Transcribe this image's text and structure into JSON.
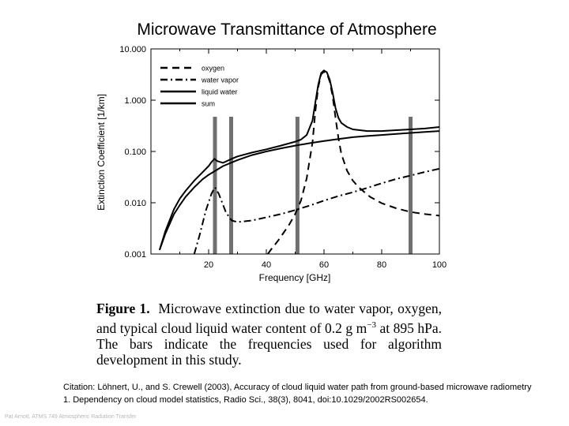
{
  "slide": {
    "title": "Microwave Transmittance of Atmosphere",
    "footer": "Pat Arnott, ATMS 749 Atmospheric Radiation Transfer"
  },
  "figure": {
    "label": "Figure 1.",
    "caption_pre": "Microwave extinction due to water vapor, oxygen, and typical cloud liquid water content of 0.2 g m",
    "caption_exp": "−3",
    "caption_post": " at 895 hPa. The bars indicate the frequencies used for algorithm development in this study."
  },
  "citation": {
    "label": "Citation",
    "text": ": Löhnert, U., and S. Crewell (2003), Accuracy of cloud liquid water path from ground-based microwave radiometry 1. Dependency on cloud model statistics, Radio Sci., 38(3), 8041, doi:10.1029/2002RS002654."
  },
  "chart_data": {
    "type": "line",
    "xlabel": "Frequency [GHz]",
    "ylabel": "Extinction Coefficient [1/km]",
    "xlim": [
      0,
      100
    ],
    "ylim": [
      0.001,
      10
    ],
    "yscale": "log",
    "xticks": [
      20,
      40,
      60,
      80,
      100
    ],
    "yticks": [
      {
        "value": 0.001,
        "label": "0.001"
      },
      {
        "value": 0.01,
        "label": "0.010"
      },
      {
        "value": 0.1,
        "label": "0.100"
      },
      {
        "value": 1,
        "label": "1.000"
      },
      {
        "value": 10,
        "label": "10.000"
      }
    ],
    "legend_position": "top-left",
    "series": [
      {
        "name": "oxygen",
        "style": "dashed",
        "points": [
          [
            40.5,
            0.001
          ],
          [
            42,
            0.0013
          ],
          [
            44,
            0.0018
          ],
          [
            46,
            0.0026
          ],
          [
            48,
            0.0038
          ],
          [
            50,
            0.006
          ],
          [
            52,
            0.011
          ],
          [
            54,
            0.03
          ],
          [
            56,
            0.15
          ],
          [
            57,
            0.6
          ],
          [
            58,
            1.8
          ],
          [
            59,
            3.2
          ],
          [
            60,
            3.6
          ],
          [
            61,
            3.3
          ],
          [
            62,
            2.3
          ],
          [
            63,
            1.2
          ],
          [
            64,
            0.45
          ],
          [
            65,
            0.18
          ],
          [
            66,
            0.09
          ],
          [
            68,
            0.042
          ],
          [
            70,
            0.027
          ],
          [
            72,
            0.02
          ],
          [
            76,
            0.013
          ],
          [
            80,
            0.0098
          ],
          [
            85,
            0.0078
          ],
          [
            90,
            0.0066
          ],
          [
            95,
            0.006
          ],
          [
            100,
            0.0056
          ]
        ]
      },
      {
        "name": "water vapor",
        "style": "dash-dot",
        "points": [
          [
            15,
            0.001
          ],
          [
            17,
            0.0025
          ],
          [
            19,
            0.007
          ],
          [
            21,
            0.015
          ],
          [
            22.2,
            0.02
          ],
          [
            23.5,
            0.015
          ],
          [
            26,
            0.0065
          ],
          [
            28,
            0.0045
          ],
          [
            30,
            0.0042
          ],
          [
            35,
            0.0045
          ],
          [
            40,
            0.0052
          ],
          [
            45,
            0.006
          ],
          [
            50,
            0.0072
          ],
          [
            55,
            0.0088
          ],
          [
            60,
            0.011
          ],
          [
            65,
            0.0135
          ],
          [
            70,
            0.016
          ],
          [
            75,
            0.0195
          ],
          [
            80,
            0.024
          ],
          [
            85,
            0.029
          ],
          [
            90,
            0.034
          ],
          [
            95,
            0.04
          ],
          [
            100,
            0.046
          ]
        ]
      },
      {
        "name": "liquid water",
        "style": "solid",
        "points": [
          [
            3,
            0.0012
          ],
          [
            5,
            0.0025
          ],
          [
            8,
            0.006
          ],
          [
            10,
            0.009
          ],
          [
            12,
            0.013
          ],
          [
            15,
            0.02
          ],
          [
            18,
            0.029
          ],
          [
            20,
            0.035
          ],
          [
            25,
            0.052
          ],
          [
            30,
            0.068
          ],
          [
            35,
            0.085
          ],
          [
            40,
            0.1
          ],
          [
            45,
            0.115
          ],
          [
            50,
            0.13
          ],
          [
            55,
            0.145
          ],
          [
            60,
            0.16
          ],
          [
            65,
            0.175
          ],
          [
            70,
            0.19
          ],
          [
            75,
            0.2
          ],
          [
            80,
            0.21
          ],
          [
            85,
            0.22
          ],
          [
            90,
            0.23
          ],
          [
            95,
            0.24
          ],
          [
            100,
            0.25
          ]
        ]
      },
      {
        "name": "sum",
        "style": "solid",
        "points": [
          [
            3,
            0.0012
          ],
          [
            5,
            0.0028
          ],
          [
            8,
            0.0075
          ],
          [
            10,
            0.012
          ],
          [
            12,
            0.017
          ],
          [
            15,
            0.027
          ],
          [
            18,
            0.04
          ],
          [
            20,
            0.052
          ],
          [
            21,
            0.062
          ],
          [
            22,
            0.072
          ],
          [
            23,
            0.065
          ],
          [
            25,
            0.06
          ],
          [
            28,
            0.072
          ],
          [
            30,
            0.08
          ],
          [
            35,
            0.095
          ],
          [
            40,
            0.11
          ],
          [
            45,
            0.13
          ],
          [
            50,
            0.155
          ],
          [
            52,
            0.17
          ],
          [
            54,
            0.21
          ],
          [
            56,
            0.4
          ],
          [
            57,
            0.9
          ],
          [
            58,
            2.0
          ],
          [
            59,
            3.4
          ],
          [
            60,
            3.8
          ],
          [
            61,
            3.5
          ],
          [
            62,
            2.5
          ],
          [
            63,
            1.4
          ],
          [
            64,
            0.7
          ],
          [
            65,
            0.45
          ],
          [
            66,
            0.36
          ],
          [
            68,
            0.3
          ],
          [
            70,
            0.27
          ],
          [
            75,
            0.25
          ],
          [
            80,
            0.25
          ],
          [
            85,
            0.26
          ],
          [
            90,
            0.27
          ],
          [
            95,
            0.28
          ],
          [
            100,
            0.3
          ]
        ]
      }
    ],
    "bars": [
      {
        "frequency": 22.2
      },
      {
        "frequency": 27.8
      },
      {
        "frequency": 50.8
      },
      {
        "frequency": 90.0
      }
    ]
  }
}
